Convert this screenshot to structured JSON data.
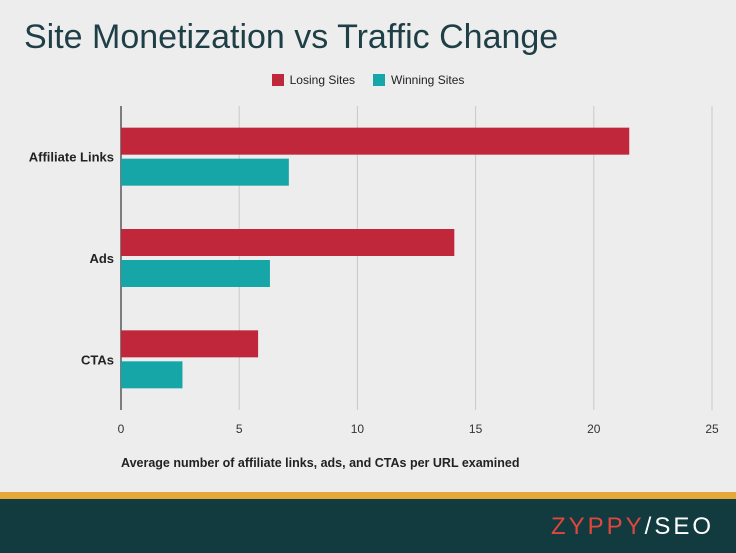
{
  "title": "Site Monetization vs Traffic Change",
  "colors": {
    "losing": "#c0273a",
    "winning": "#17a6a8",
    "accent": "#e5a83b",
    "footer": "#123b40"
  },
  "chart_data": {
    "type": "bar",
    "orientation": "horizontal",
    "categories": [
      "Affiliate Links",
      "Ads",
      "CTAs"
    ],
    "series": [
      {
        "name": "Losing Sites",
        "values": [
          21.5,
          14.1,
          5.8
        ],
        "color": "#c0273a"
      },
      {
        "name": "Winning Sites",
        "values": [
          7.1,
          6.3,
          2.6
        ],
        "color": "#17a6a8"
      }
    ],
    "xlim": [
      0,
      25
    ],
    "xticks": [
      "0",
      "5",
      "10",
      "15",
      "20",
      "25"
    ],
    "xlabel": "Average number of affiliate links, ads, and CTAs per URL examined",
    "ylabel": "",
    "grid": "vertical",
    "legend": "top-center"
  },
  "logo": {
    "brand": "ZYPPY",
    "separator": "/",
    "suffix": "SEO"
  }
}
